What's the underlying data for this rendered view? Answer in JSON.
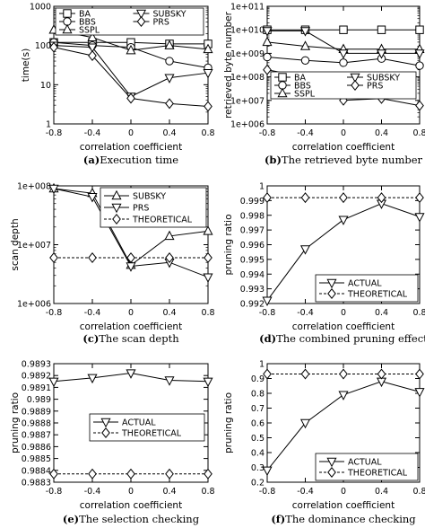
{
  "chart_data": [
    {
      "type": "line",
      "caption_tag": "(a)",
      "caption_text": "Execution time",
      "xlabel": "correlation coefficient",
      "ylabel": "time(s)",
      "scale": "log",
      "ylim": [
        1,
        1000
      ],
      "yticks": [
        1,
        10,
        100,
        1000
      ],
      "ytick_labels": [
        "1",
        "10",
        "100",
        "1000"
      ],
      "x": [
        -0.8,
        -0.4,
        0,
        0.4,
        0.8
      ],
      "xticks": [
        -0.8,
        -0.4,
        0,
        0.4,
        0.8
      ],
      "xtick_labels": [
        "-0.8",
        "-0.4",
        "0",
        "0.4",
        "0.8"
      ],
      "legend": "top",
      "series": [
        {
          "name": "BA",
          "marker": "square",
          "values": [
            120,
            120,
            120,
            110,
            110
          ]
        },
        {
          "name": "BBS",
          "marker": "circle",
          "values": [
            120,
            100,
            90,
            40,
            27
          ]
        },
        {
          "name": "SSPL",
          "marker": "triangle-up",
          "values": [
            250,
            160,
            75,
            100,
            80
          ]
        },
        {
          "name": "SUBSKY",
          "marker": "triangle-down",
          "values": [
            100,
            90,
            5,
            15,
            20
          ]
        },
        {
          "name": "PRS",
          "marker": "diamond",
          "values": [
            90,
            55,
            4.5,
            3.3,
            2.8
          ]
        }
      ]
    },
    {
      "type": "line",
      "caption_tag": "(b)",
      "caption_text": "The retrieved byte number",
      "xlabel": "correlation coefficient",
      "ylabel": "retrieved byte number",
      "scale": "log",
      "ylim": [
        1000000,
        100000000000
      ],
      "yticks": [
        1000000,
        10000000,
        100000000,
        1000000000,
        10000000000,
        100000000000
      ],
      "ytick_labels": [
        "1e+006",
        "1e+007",
        "1e+008",
        "1e+009",
        "1e+010",
        "1e+011"
      ],
      "x": [
        -0.8,
        -0.4,
        0,
        0.4,
        0.8
      ],
      "xticks": [
        -0.8,
        -0.4,
        0,
        0.4,
        0.8
      ],
      "xtick_labels": [
        "-0.8",
        "-0.4",
        "0",
        "0.4",
        "0.8"
      ],
      "legend": "bottom",
      "series": [
        {
          "name": "BA",
          "marker": "square",
          "values": [
            10000000000,
            10000000000,
            10000000000,
            10000000000,
            10000000000
          ]
        },
        {
          "name": "BBS",
          "marker": "circle",
          "values": [
            700000000,
            500000000,
            400000000,
            600000000,
            300000000
          ]
        },
        {
          "name": "SSPL",
          "marker": "triangle-up",
          "values": [
            3000000000,
            2000000000,
            1500000000,
            1500000000,
            1500000000
          ]
        },
        {
          "name": "SUBSKY",
          "marker": "triangle-down",
          "values": [
            9000000000,
            9000000000,
            1000000000,
            1000000000,
            1000000000
          ]
        },
        {
          "name": "PRS",
          "marker": "diamond",
          "values": [
            200000000,
            100000000,
            10000000,
            12000000,
            6000000
          ]
        }
      ]
    },
    {
      "type": "line",
      "caption_tag": "(c)",
      "caption_text": "The scan depth",
      "xlabel": "correlation coefficient",
      "ylabel": "scan depth",
      "scale": "log",
      "ylim": [
        1000000,
        100000000
      ],
      "yticks": [
        1000000,
        10000000,
        100000000
      ],
      "ytick_labels": [
        "1e+006",
        "1e+007",
        "1e+008"
      ],
      "x": [
        -0.8,
        -0.4,
        0,
        0.4,
        0.8
      ],
      "xticks": [
        -0.8,
        -0.4,
        0,
        0.4,
        0.8
      ],
      "xtick_labels": [
        "-0.8",
        "-0.4",
        "0",
        "0.4",
        "0.8"
      ],
      "legend": "top-right",
      "series": [
        {
          "name": "SUBSKY",
          "marker": "triangle-up",
          "style": "solid",
          "values": [
            90000000,
            75000000,
            4500000,
            14000000,
            17000000
          ]
        },
        {
          "name": "PRS",
          "marker": "triangle-down",
          "style": "solid",
          "values": [
            90000000,
            65000000,
            4300000,
            5000000,
            2800000
          ]
        },
        {
          "name": "THEORETICAL",
          "marker": "diamond",
          "style": "dashed",
          "values": [
            6000000,
            6000000,
            6000000,
            6000000,
            6000000
          ]
        }
      ]
    },
    {
      "type": "line",
      "caption_tag": "(d)",
      "caption_text": "The combined pruning effect",
      "xlabel": "correlation coefficient",
      "ylabel": "pruning ratio",
      "scale": "linear",
      "ylim": [
        0.992,
        1
      ],
      "yticks": [
        0.992,
        0.993,
        0.994,
        0.995,
        0.996,
        0.997,
        0.998,
        0.999,
        1
      ],
      "ytick_labels": [
        "0.992",
        "0.993",
        "0.994",
        "0.995",
        "0.996",
        "0.997",
        "0.998",
        "0.999",
        "1"
      ],
      "x": [
        -0.8,
        -0.4,
        0,
        0.4,
        0.8
      ],
      "xticks": [
        -0.8,
        -0.4,
        0,
        0.4,
        0.8
      ],
      "xtick_labels": [
        "-0.8",
        "-0.4",
        "0",
        "0.4",
        "0.8"
      ],
      "legend": "bottom-right",
      "series": [
        {
          "name": "ACTUAL",
          "marker": "triangle-down",
          "style": "solid",
          "values": [
            0.9922,
            0.9957,
            0.9977,
            0.9988,
            0.9979
          ]
        },
        {
          "name": "THEORETICAL",
          "marker": "diamond",
          "style": "dashed",
          "values": [
            0.9992,
            0.9992,
            0.9992,
            0.9992,
            0.9992
          ]
        }
      ]
    },
    {
      "type": "line",
      "caption_tag": "(e)",
      "caption_text": "The selection checking",
      "xlabel": "correlation coefficient",
      "ylabel": "pruning ratio",
      "scale": "linear",
      "ylim": [
        0.9883,
        0.9893
      ],
      "yticks": [
        0.9883,
        0.9884,
        0.9885,
        0.9886,
        0.9887,
        0.9888,
        0.9889,
        0.989,
        0.9891,
        0.9892,
        0.9893
      ],
      "ytick_labels": [
        "0.9883",
        "0.9884",
        "0.9885",
        "0.9886",
        "0.9887",
        "0.9888",
        "0.9889",
        "0.989",
        "0.9891",
        "0.9892",
        "0.9893"
      ],
      "x": [
        -0.8,
        -0.4,
        0,
        0.4,
        0.8
      ],
      "xticks": [
        -0.8,
        -0.4,
        0,
        0.4,
        0.8
      ],
      "xtick_labels": [
        "-0.8",
        "-0.4",
        "0",
        "0.4",
        "0.8"
      ],
      "legend": "middle-right",
      "series": [
        {
          "name": "ACTUAL",
          "marker": "triangle-down",
          "style": "solid",
          "values": [
            0.98915,
            0.98918,
            0.98922,
            0.98916,
            0.98915
          ]
        },
        {
          "name": "THEORETICAL",
          "marker": "diamond",
          "style": "dashed",
          "values": [
            0.98837,
            0.98837,
            0.98837,
            0.98837,
            0.98837
          ]
        }
      ]
    },
    {
      "type": "line",
      "caption_tag": "(f)",
      "caption_text": "The dominance checking",
      "xlabel": "correlation coefficient",
      "ylabel": "pruning ratio",
      "scale": "linear",
      "ylim": [
        0.2,
        1
      ],
      "yticks": [
        0.2,
        0.3,
        0.4,
        0.5,
        0.6,
        0.7,
        0.8,
        0.9,
        1
      ],
      "ytick_labels": [
        "0.2",
        "0.3",
        "0.4",
        "0.5",
        "0.6",
        "0.7",
        "0.8",
        "0.9",
        "1"
      ],
      "x": [
        -0.8,
        -0.4,
        0,
        0.4,
        0.8
      ],
      "xticks": [
        -0.8,
        -0.4,
        0,
        0.4,
        0.8
      ],
      "xtick_labels": [
        "-0.8",
        "-0.4",
        "0",
        "0.4",
        "0.8"
      ],
      "legend": "bottom-right",
      "series": [
        {
          "name": "ACTUAL",
          "marker": "triangle-down",
          "style": "solid",
          "values": [
            0.28,
            0.6,
            0.79,
            0.88,
            0.81
          ]
        },
        {
          "name": "THEORETICAL",
          "marker": "diamond",
          "style": "dashed",
          "values": [
            0.93,
            0.93,
            0.93,
            0.93,
            0.93
          ]
        }
      ]
    }
  ]
}
